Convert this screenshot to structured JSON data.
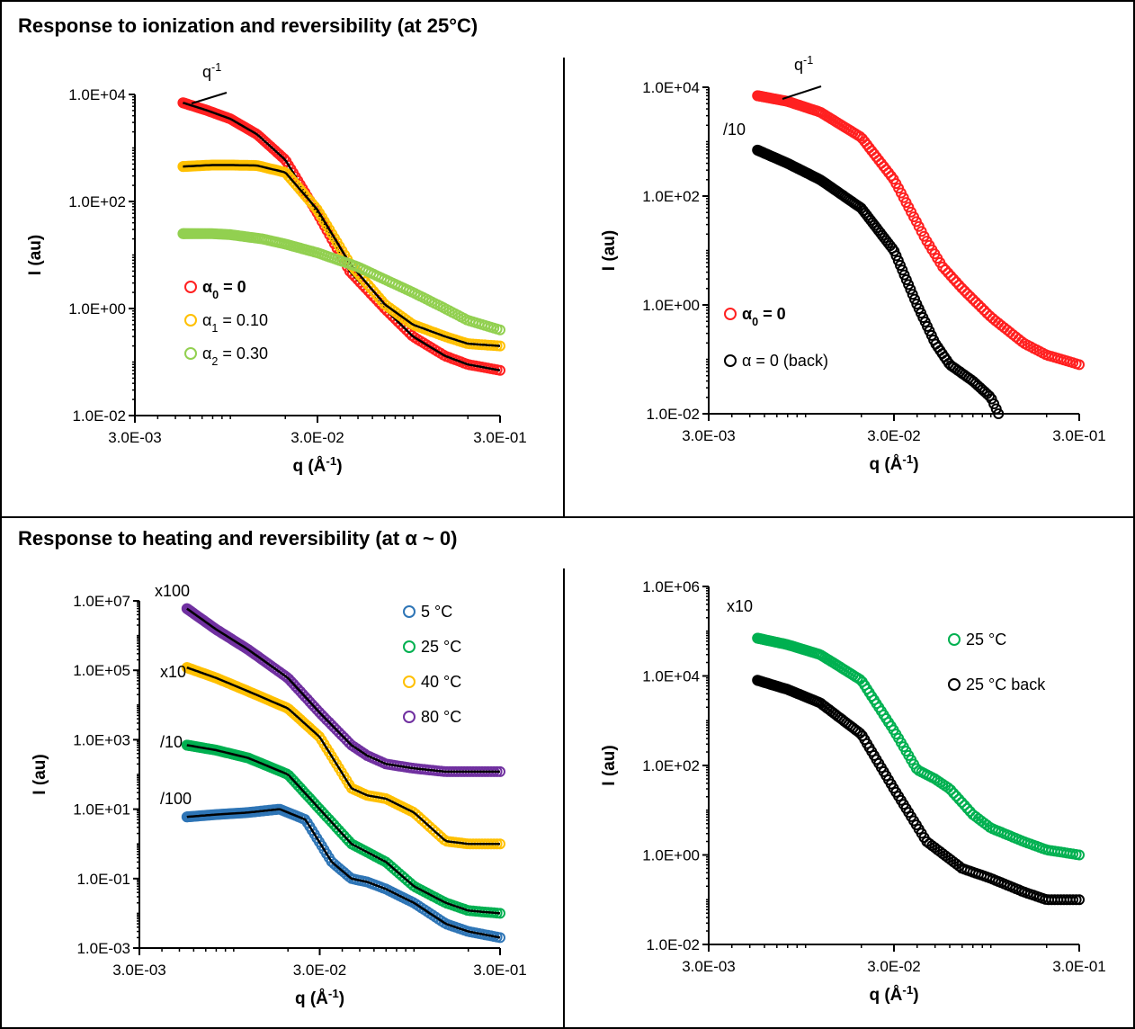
{
  "sections": {
    "top_title": "Response to ionization and reversibility (at 25°C)",
    "bottom_title": "Response to heating and reversibility (at α ~ 0)"
  },
  "chart_data": [
    {
      "type": "scatter",
      "x_scale": "log",
      "y_scale": "log",
      "xlim": [
        0.003,
        0.3
      ],
      "ylim": [
        0.01,
        10000
      ],
      "xticks": [
        "3.0E-03",
        "3.0E-02",
        "3.0E-01"
      ],
      "yticks": [
        "1.0E-02",
        "1.0E+00",
        "1.0E+02",
        "1.0E+04"
      ],
      "xlabel": "q (Å-1)",
      "ylabel": "I (au)",
      "slope_label": "q-1",
      "legend_position": "bottom-left",
      "series": [
        {
          "name": "α0 = 0",
          "bold": true,
          "color": "#ff2020",
          "fit_color": "#000000",
          "x": [
            0.0055,
            0.0075,
            0.01,
            0.014,
            0.02,
            0.03,
            0.045,
            0.07,
            0.1,
            0.15,
            0.2,
            0.3
          ],
          "y": [
            7000,
            5000,
            3500,
            1800,
            600,
            60,
            5,
            1,
            0.3,
            0.13,
            0.09,
            0.07
          ]
        },
        {
          "name": "α1 = 0.10",
          "color": "#ffc000",
          "fit_color": "#000000",
          "x": [
            0.0055,
            0.008,
            0.01,
            0.014,
            0.02,
            0.03,
            0.045,
            0.07,
            0.1,
            0.15,
            0.2,
            0.3
          ],
          "y": [
            450,
            480,
            480,
            470,
            350,
            70,
            7,
            1.2,
            0.5,
            0.3,
            0.22,
            0.2
          ]
        },
        {
          "name": "α2 = 0.30",
          "color": "#92d050",
          "x": [
            0.0055,
            0.008,
            0.01,
            0.015,
            0.02,
            0.03,
            0.05,
            0.07,
            0.1,
            0.15,
            0.2,
            0.3
          ],
          "y": [
            25,
            25,
            24,
            20,
            16,
            11,
            6,
            3.5,
            2,
            1,
            0.6,
            0.4
          ]
        }
      ]
    },
    {
      "type": "scatter",
      "x_scale": "log",
      "y_scale": "log",
      "xlim": [
        0.003,
        0.3
      ],
      "ylim": [
        0.01,
        10000
      ],
      "xticks": [
        "3.0E-03",
        "3.0E-02",
        "3.0E-01"
      ],
      "yticks": [
        "1.0E-02",
        "1.0E+00",
        "1.0E+02",
        "1.0E+04"
      ],
      "xlabel": "q (Å-1)",
      "ylabel": "I (au)",
      "slope_label": "q-1",
      "annotations": [
        "/10"
      ],
      "legend_position": "bottom-left",
      "series": [
        {
          "name": "α0 = 0",
          "bold": true,
          "color": "#ff2020",
          "x": [
            0.0055,
            0.008,
            0.012,
            0.02,
            0.03,
            0.045,
            0.055,
            0.07,
            0.1,
            0.15,
            0.2,
            0.3
          ],
          "y": [
            7000,
            5500,
            3500,
            1200,
            200,
            15,
            5,
            2,
            0.6,
            0.2,
            0.12,
            0.08
          ]
        },
        {
          "name": "α = 0 (back)",
          "color": "#000000",
          "x": [
            0.0055,
            0.008,
            0.012,
            0.02,
            0.03,
            0.04,
            0.05,
            0.06,
            0.08,
            0.1,
            0.11
          ],
          "y": [
            700,
            400,
            200,
            60,
            10,
            1,
            0.2,
            0.08,
            0.04,
            0.02,
            0.01
          ]
        }
      ]
    },
    {
      "type": "scatter",
      "x_scale": "log",
      "y_scale": "log",
      "xlim": [
        0.003,
        0.3
      ],
      "ylim": [
        0.001,
        10000000
      ],
      "xticks": [
        "3.0E-03",
        "3.0E-02",
        "3.0E-01"
      ],
      "yticks": [
        "1.0E-03",
        "1.0E-01",
        "1.0E+01",
        "1.0E+03",
        "1.0E+05",
        "1.0E+07"
      ],
      "xlabel": "q (Å-1)",
      "ylabel": "I (au)",
      "scale_labels": [
        "x100",
        "x10",
        "/10",
        "/100"
      ],
      "legend_position": "top-right",
      "series": [
        {
          "name": "5 °C",
          "color": "#2e75b6",
          "scale_label": "/100",
          "x": [
            0.0055,
            0.008,
            0.012,
            0.018,
            0.025,
            0.035,
            0.045,
            0.055,
            0.07,
            0.1,
            0.15,
            0.2,
            0.3
          ],
          "y": [
            6,
            7,
            8,
            10,
            5,
            0.3,
            0.1,
            0.08,
            0.05,
            0.02,
            0.005,
            0.003,
            0.002
          ]
        },
        {
          "name": "25 °C",
          "color": "#00b050",
          "scale_label": "/10",
          "x": [
            0.0055,
            0.008,
            0.012,
            0.02,
            0.03,
            0.045,
            0.07,
            0.1,
            0.15,
            0.2,
            0.3
          ],
          "y": [
            700,
            500,
            300,
            100,
            10,
            1,
            0.3,
            0.06,
            0.02,
            0.012,
            0.01
          ]
        },
        {
          "name": "40 °C",
          "color": "#ffc000",
          "scale_label": "x10",
          "x": [
            0.0055,
            0.008,
            0.012,
            0.02,
            0.03,
            0.045,
            0.055,
            0.07,
            0.1,
            0.15,
            0.2,
            0.3
          ],
          "y": [
            120000,
            60000,
            25000,
            8000,
            1200,
            40,
            25,
            20,
            8,
            1.2,
            1,
            1
          ]
        },
        {
          "name": "80 °C",
          "color": "#7030a0",
          "scale_label": "x100",
          "x": [
            0.0055,
            0.008,
            0.012,
            0.02,
            0.03,
            0.045,
            0.055,
            0.07,
            0.1,
            0.15,
            0.2,
            0.3
          ],
          "y": [
            6000000,
            1500000,
            400000,
            60000,
            6000,
            700,
            350,
            200,
            150,
            120,
            120,
            120
          ]
        }
      ]
    },
    {
      "type": "scatter",
      "x_scale": "log",
      "y_scale": "log",
      "xlim": [
        0.003,
        0.3
      ],
      "ylim": [
        0.01,
        1000000
      ],
      "xticks": [
        "3.0E-03",
        "3.0E-02",
        "3.0E-01"
      ],
      "yticks": [
        "1.0E-02",
        "1.0E+00",
        "1.0E+02",
        "1.0E+04",
        "1.0E+06"
      ],
      "xlabel": "q (Å-1)",
      "ylabel": "I (au)",
      "scale_labels": [
        "x10"
      ],
      "legend_position": "top-right",
      "series": [
        {
          "name": "25 °C",
          "color": "#00b050",
          "scale_label": "x10",
          "x": [
            0.0055,
            0.008,
            0.012,
            0.02,
            0.03,
            0.04,
            0.05,
            0.06,
            0.08,
            0.1,
            0.15,
            0.2,
            0.3
          ],
          "y": [
            70000,
            50000,
            30000,
            8000,
            600,
            80,
            50,
            30,
            8,
            4,
            2,
            1.3,
            1
          ]
        },
        {
          "name": "25 °C back",
          "color": "#000000",
          "x": [
            0.0055,
            0.008,
            0.012,
            0.02,
            0.03,
            0.045,
            0.07,
            0.1,
            0.15,
            0.2,
            0.3
          ],
          "y": [
            8000,
            5000,
            2500,
            500,
            30,
            2,
            0.5,
            0.3,
            0.15,
            0.1,
            0.1
          ]
        }
      ]
    }
  ]
}
